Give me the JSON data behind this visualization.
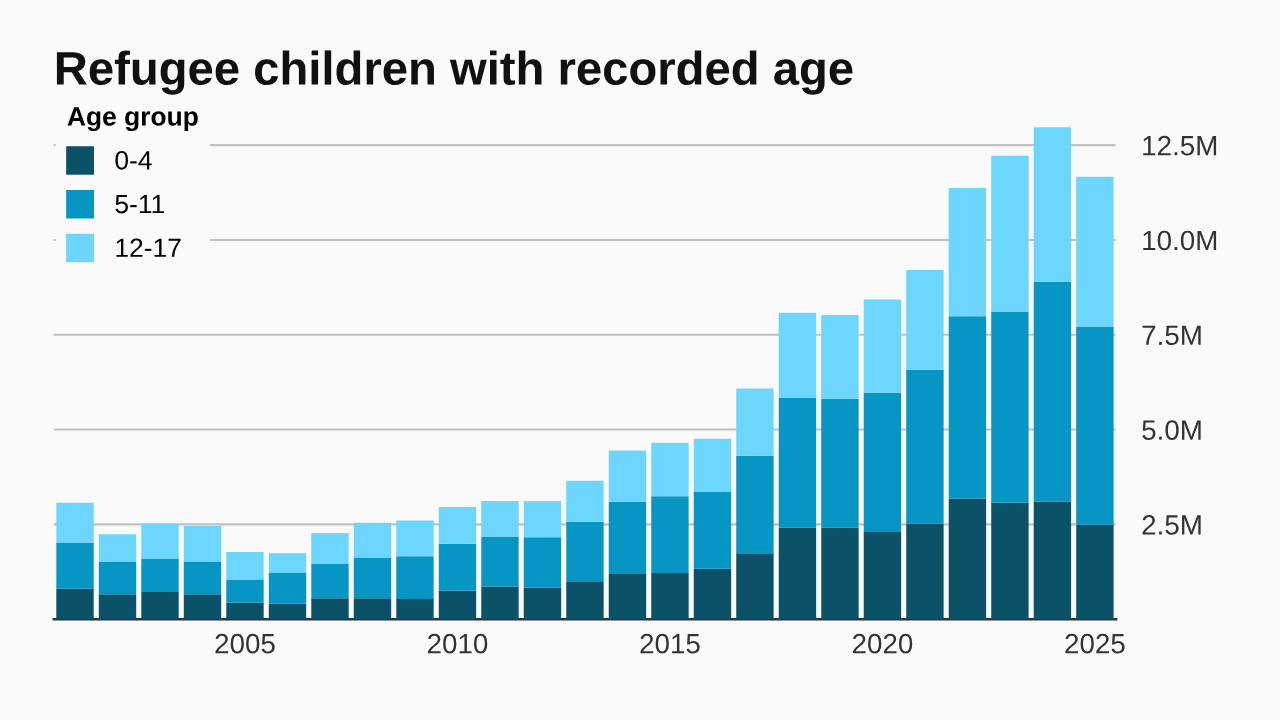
{
  "chart_data": {
    "type": "bar",
    "title": "Refugee children with recorded age",
    "legend_title": "Age group",
    "stacked": true,
    "x": [
      2001,
      2002,
      2003,
      2004,
      2005,
      2006,
      2007,
      2008,
      2009,
      2010,
      2011,
      2012,
      2013,
      2014,
      2015,
      2016,
      2017,
      2018,
      2019,
      2020,
      2021,
      2022,
      2023,
      2024,
      2025
    ],
    "series": [
      {
        "name": "0-4",
        "color": "#0b5269",
        "values": [
          0.8,
          0.66,
          0.72,
          0.66,
          0.44,
          0.41,
          0.55,
          0.55,
          0.53,
          0.75,
          0.86,
          0.83,
          1.0,
          1.19,
          1.22,
          1.33,
          1.74,
          2.41,
          2.41,
          2.3,
          2.52,
          3.18,
          3.07,
          3.1,
          2.49
        ]
      },
      {
        "name": "5-11",
        "color": "#0795c4",
        "values": [
          1.22,
          0.86,
          0.88,
          0.86,
          0.61,
          0.81,
          0.92,
          1.08,
          1.13,
          1.24,
          1.32,
          1.33,
          1.57,
          1.91,
          2.02,
          2.04,
          2.57,
          3.43,
          3.4,
          3.67,
          4.06,
          4.81,
          5.03,
          5.8,
          5.23
        ]
      },
      {
        "name": "12-17",
        "color": "#6dd6fc",
        "values": [
          1.05,
          0.72,
          0.92,
          0.94,
          0.72,
          0.52,
          0.8,
          0.91,
          0.94,
          0.97,
          0.94,
          0.96,
          1.08,
          1.35,
          1.41,
          1.39,
          1.77,
          2.24,
          2.21,
          2.46,
          2.63,
          3.38,
          4.12,
          4.07,
          3.95
        ]
      }
    ],
    "xlim": [
      2000.5,
      2025.5
    ],
    "xticks": [
      2005,
      2010,
      2015,
      2020,
      2025
    ],
    "ylim": [
      0,
      13.1
    ],
    "yticks": [
      {
        "value": 2.5,
        "label": "2.5M"
      },
      {
        "value": 5,
        "label": "5.0M"
      },
      {
        "value": 7.5,
        "label": "7.5M"
      },
      {
        "value": 10,
        "label": "10.0M"
      },
      {
        "value": 12.5,
        "label": "12.5M"
      }
    ],
    "grid": "y",
    "legend": "top left"
  }
}
